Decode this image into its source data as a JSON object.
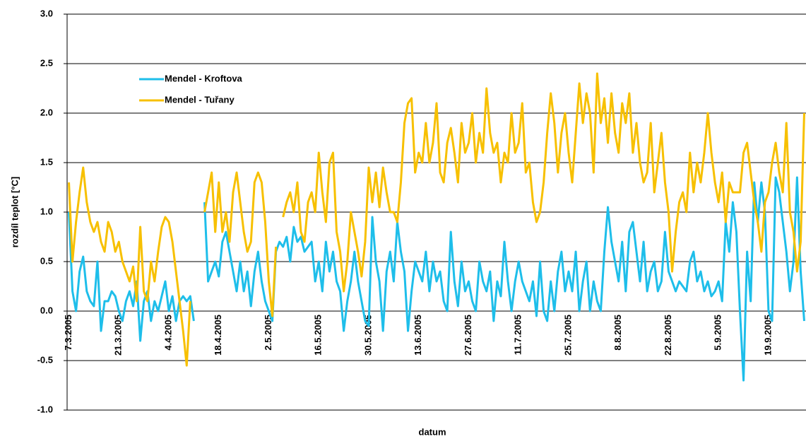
{
  "chart_data": {
    "type": "line",
    "y_label": "rozdíl teplot [°C]",
    "x_label": "datum",
    "categories": [
      "7.3.2005",
      null,
      null,
      null,
      null,
      null,
      null,
      null,
      null,
      null,
      null,
      null,
      null,
      null,
      "21.3.2005",
      null,
      null,
      null,
      null,
      null,
      null,
      null,
      null,
      null,
      null,
      null,
      null,
      null,
      "4.4.2005",
      null,
      null,
      null,
      null,
      null,
      null,
      null,
      null,
      null,
      null,
      null,
      null,
      null,
      "18.4.2005",
      null,
      null,
      null,
      null,
      null,
      null,
      null,
      null,
      null,
      null,
      null,
      null,
      null,
      "2.5.2005",
      null,
      null,
      null,
      null,
      null,
      null,
      null,
      null,
      null,
      null,
      null,
      null,
      null,
      "16.5.2005",
      null,
      null,
      null,
      null,
      null,
      null,
      null,
      null,
      null,
      null,
      null,
      null,
      null,
      "30.5.2005",
      null,
      null,
      null,
      null,
      null,
      null,
      null,
      null,
      null,
      null,
      null,
      null,
      null,
      "13.6.2005",
      null,
      null,
      null,
      null,
      null,
      null,
      null,
      null,
      null,
      null,
      null,
      null,
      null,
      "27.6.2005",
      null,
      null,
      null,
      null,
      null,
      null,
      null,
      null,
      null,
      null,
      null,
      null,
      null,
      "11.7.2005",
      null,
      null,
      null,
      null,
      null,
      null,
      null,
      null,
      null,
      null,
      null,
      null,
      null,
      "25.7.2005",
      null,
      null,
      null,
      null,
      null,
      null,
      null,
      null,
      null,
      null,
      null,
      null,
      null,
      "8.8.2005",
      null,
      null,
      null,
      null,
      null,
      null,
      null,
      null,
      null,
      null,
      null,
      null,
      null,
      "22.8.2005",
      null,
      null,
      null,
      null,
      null,
      null,
      null,
      null,
      null,
      null,
      null,
      null,
      null,
      "5.9.2005",
      null,
      null,
      null,
      null,
      null,
      null,
      null,
      null,
      null,
      null,
      null,
      null,
      null,
      "19.9.2005",
      null,
      null,
      null,
      null,
      null,
      null,
      null,
      null,
      null,
      null
    ],
    "series": [
      {
        "name": "Mendel - Kroftova",
        "color": "#1ebeea",
        "values": [
          1.0,
          0.2,
          0.0,
          0.4,
          0.55,
          0.2,
          0.1,
          0.05,
          0.5,
          -0.2,
          0.1,
          0.1,
          0.2,
          0.15,
          0.0,
          -0.1,
          0.1,
          0.2,
          0.05,
          0.3,
          -0.3,
          0.1,
          0.2,
          -0.1,
          0.1,
          0.0,
          0.15,
          0.3,
          0.0,
          0.15,
          -0.1,
          0.1,
          0.15,
          0.1,
          0.15,
          -0.1,
          null,
          null,
          1.1,
          0.3,
          0.4,
          0.5,
          0.35,
          0.7,
          0.8,
          0.6,
          0.4,
          0.2,
          0.5,
          0.2,
          0.4,
          0.05,
          0.4,
          0.6,
          0.3,
          0.1,
          0.0,
          -0.1,
          0.6,
          0.7,
          0.65,
          0.75,
          0.5,
          0.85,
          0.7,
          0.75,
          0.6,
          0.65,
          0.7,
          0.3,
          0.5,
          0.2,
          0.7,
          0.4,
          0.6,
          0.3,
          0.2,
          -0.2,
          0.1,
          0.3,
          0.6,
          0.3,
          0.1,
          -0.1,
          -0.15,
          0.95,
          0.5,
          0.3,
          -0.2,
          0.4,
          0.6,
          0.3,
          0.9,
          0.6,
          0.4,
          -0.2,
          0.2,
          0.5,
          0.4,
          0.3,
          0.6,
          0.2,
          0.5,
          0.3,
          0.4,
          0.1,
          0.0,
          0.8,
          0.3,
          0.05,
          0.5,
          0.2,
          0.3,
          0.1,
          0.0,
          0.5,
          0.3,
          0.2,
          0.4,
          -0.1,
          0.3,
          0.15,
          0.7,
          0.3,
          0.0,
          0.3,
          0.5,
          0.3,
          0.2,
          0.1,
          0.3,
          -0.05,
          0.5,
          0.0,
          -0.1,
          0.3,
          0.0,
          0.4,
          0.6,
          0.2,
          0.4,
          0.2,
          0.6,
          0.0,
          0.3,
          0.5,
          0.0,
          0.3,
          0.1,
          0.0,
          0.6,
          1.05,
          0.7,
          0.5,
          0.3,
          0.7,
          0.2,
          0.8,
          0.9,
          0.6,
          0.3,
          0.7,
          0.2,
          0.4,
          0.5,
          0.2,
          0.3,
          0.8,
          0.4,
          0.3,
          0.2,
          0.3,
          0.25,
          0.2,
          0.5,
          0.6,
          0.3,
          0.4,
          0.2,
          0.3,
          0.15,
          0.2,
          0.3,
          0.1,
          0.9,
          0.6,
          1.1,
          0.8,
          0.0,
          -0.7,
          0.6,
          0.1,
          1.3,
          0.9,
          1.3,
          1.0,
          0.0,
          -0.1,
          1.35,
          1.2,
          0.9,
          0.6,
          0.2,
          0.5,
          1.35,
          0.4,
          -0.1
        ]
      },
      {
        "name": "Mendel - Tuřany",
        "color": "#f7c000",
        "values": [
          1.3,
          0.5,
          0.9,
          1.2,
          1.45,
          1.1,
          0.9,
          0.8,
          0.9,
          0.7,
          0.6,
          0.9,
          0.8,
          0.6,
          0.7,
          0.5,
          0.4,
          0.3,
          0.45,
          0.1,
          0.85,
          0.2,
          0.1,
          0.5,
          0.3,
          0.6,
          0.85,
          0.95,
          0.9,
          0.7,
          0.4,
          0.1,
          -0.2,
          -0.55,
          0.1,
          null,
          null,
          null,
          1.0,
          1.2,
          1.4,
          0.8,
          1.3,
          0.8,
          1.0,
          0.7,
          1.2,
          1.4,
          1.1,
          0.8,
          0.6,
          0.7,
          1.3,
          1.4,
          1.3,
          0.9,
          0.3,
          -0.05,
          0.65,
          null,
          0.95,
          1.1,
          1.2,
          1.0,
          1.3,
          0.8,
          0.7,
          1.1,
          1.2,
          1.0,
          1.6,
          1.2,
          0.9,
          1.5,
          1.6,
          0.8,
          0.6,
          0.2,
          0.5,
          1.0,
          0.8,
          0.6,
          0.35,
          0.7,
          1.45,
          1.1,
          1.4,
          1.05,
          1.45,
          1.2,
          1.0,
          1.0,
          0.9,
          1.3,
          1.9,
          2.1,
          2.15,
          1.4,
          1.6,
          1.5,
          1.9,
          1.5,
          1.7,
          2.1,
          1.4,
          1.3,
          1.7,
          1.85,
          1.6,
          1.3,
          1.9,
          1.6,
          1.7,
          2.0,
          1.5,
          1.8,
          1.6,
          2.25,
          1.8,
          1.6,
          1.7,
          1.3,
          1.6,
          1.5,
          2.0,
          1.6,
          1.7,
          2.1,
          1.4,
          1.5,
          1.1,
          0.9,
          1.0,
          1.3,
          1.8,
          2.2,
          1.9,
          1.4,
          1.8,
          2.0,
          1.6,
          1.3,
          1.8,
          2.3,
          1.9,
          2.2,
          2.0,
          1.4,
          2.4,
          1.9,
          2.15,
          1.7,
          2.2,
          1.8,
          1.6,
          2.1,
          1.9,
          2.2,
          1.6,
          1.9,
          1.5,
          1.3,
          1.4,
          1.9,
          1.2,
          1.5,
          1.8,
          1.3,
          1.0,
          0.4,
          0.8,
          1.1,
          1.2,
          1.0,
          1.6,
          1.2,
          1.5,
          1.3,
          1.6,
          2.0,
          1.6,
          1.3,
          1.1,
          1.4,
          0.9,
          1.3,
          1.2,
          1.2,
          1.2,
          1.6,
          1.7,
          1.4,
          1.1,
          0.9,
          0.6,
          1.1,
          1.2,
          1.5,
          1.7,
          1.4,
          1.2,
          1.9,
          1.0,
          0.8,
          0.4,
          0.7,
          2.0
        ]
      }
    ],
    "ylim": [
      -1,
      3
    ],
    "yticks": [
      {
        "value": -1,
        "label": "-1.0"
      },
      {
        "value": -0.5,
        "label": "-0.5"
      },
      {
        "value": 0,
        "label": "0.0"
      },
      {
        "value": 0.5,
        "label": "0.5"
      },
      {
        "value": 1,
        "label": "1.0"
      },
      {
        "value": 1.5,
        "label": "1.5"
      },
      {
        "value": 2,
        "label": "2.0"
      },
      {
        "value": 2.5,
        "label": "2.5"
      },
      {
        "value": 3,
        "label": "3.0"
      }
    ],
    "grid": true,
    "legend": "upper left"
  }
}
